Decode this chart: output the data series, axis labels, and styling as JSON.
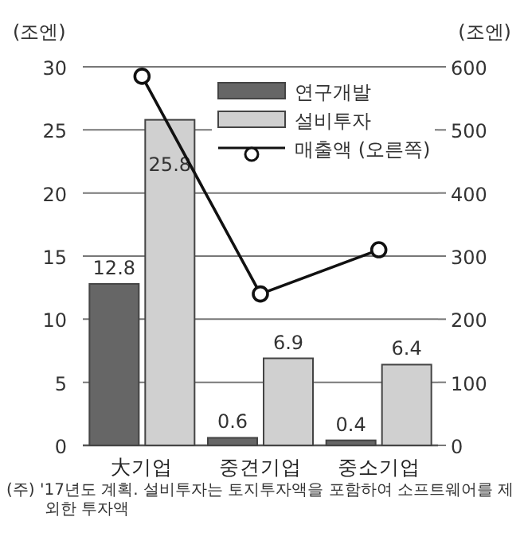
{
  "chart_data": {
    "type": "bar",
    "categories": [
      "大기업",
      "중견기업",
      "중소기업"
    ],
    "ylabel": "(조엔)",
    "y2label": "(조엔)",
    "series": [
      {
        "name": "연구개발",
        "color": "#666666",
        "values": [
          12.8,
          0.6,
          0.4
        ],
        "value_labels": [
          "12.8",
          "0.6",
          "0.4"
        ]
      },
      {
        "name": "설비투자",
        "color": "#d0d0d0",
        "values": [
          25.8,
          6.9,
          6.4
        ],
        "value_labels": [
          "25.8",
          "6.9",
          "6.4"
        ]
      },
      {
        "name": "매출액 (오른쪽)",
        "type": "line",
        "axis": "y2",
        "color": "#111111",
        "marker": "circle",
        "values": [
          585,
          240,
          310
        ]
      }
    ],
    "ylim": [
      0,
      30
    ],
    "yticks": [
      0,
      5,
      10,
      15,
      20,
      25,
      30
    ],
    "y2lim": [
      0,
      600
    ],
    "y2ticks": [
      0,
      100,
      200,
      300,
      400,
      500,
      600
    ],
    "grid": "y",
    "legend": "top right",
    "annotations": [
      "(주) '17년도 계획. 설비투자는 토지투자액을 포함하여 소프트웨어를 제외한 투자액"
    ]
  }
}
